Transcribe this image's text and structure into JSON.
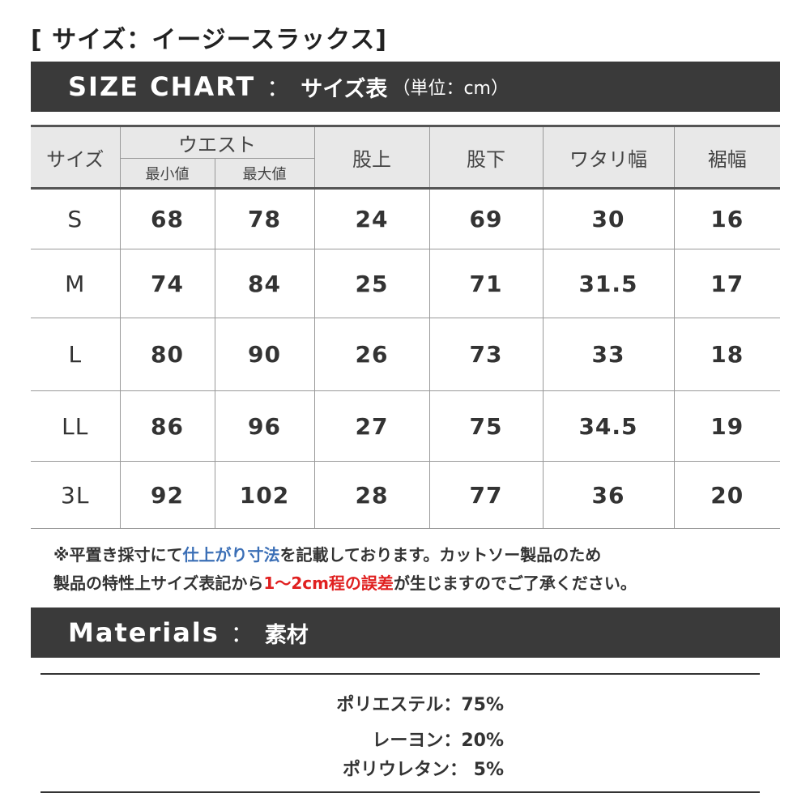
{
  "title": "[ サイズ：イージースラックス]",
  "size_chart": {
    "heading_en": "SIZE CHART",
    "separator": "：",
    "heading_jp": "サイズ表",
    "unit": "（単位：cm）"
  },
  "table": {
    "headers": {
      "size": "サイズ",
      "waist": "ウエスト",
      "waist_min": "最小値",
      "waist_max": "最大値",
      "rise": "股上",
      "inseam": "股下",
      "thigh": "ワタリ幅",
      "hem": "裾幅"
    },
    "rows": [
      [
        "S",
        "68",
        "78",
        "24",
        "69",
        "30",
        "16"
      ],
      [
        "M",
        "74",
        "84",
        "25",
        "71",
        "31.5",
        "17"
      ],
      [
        "L",
        "80",
        "90",
        "26",
        "73",
        "33",
        "18"
      ],
      [
        "LL",
        "86",
        "96",
        "27",
        "75",
        "34.5",
        "19"
      ],
      [
        "3L",
        "92",
        "102",
        "28",
        "77",
        "36",
        "20"
      ]
    ]
  },
  "note": {
    "l1a": "※平置き採寸にて",
    "l1b": "仕上がり寸法",
    "l1c": "を記載しております。カットソー製品のため",
    "l2a": "製品の特性上サイズ表記から",
    "l2b": "1～2cm程の誤差",
    "l2c": "が生じますのでご了承ください。"
  },
  "materials": {
    "heading_en": "Materials",
    "separator": "：",
    "heading_jp": "素材",
    "items": [
      "ポリエステル：75%",
      "レーヨン：20%",
      "ポリウレタン： 5%"
    ]
  },
  "colors": {
    "bar": "#3a3a3a",
    "header_bg": "#e8e8e8",
    "blue": "#3b6fb6",
    "red": "#e02020"
  }
}
